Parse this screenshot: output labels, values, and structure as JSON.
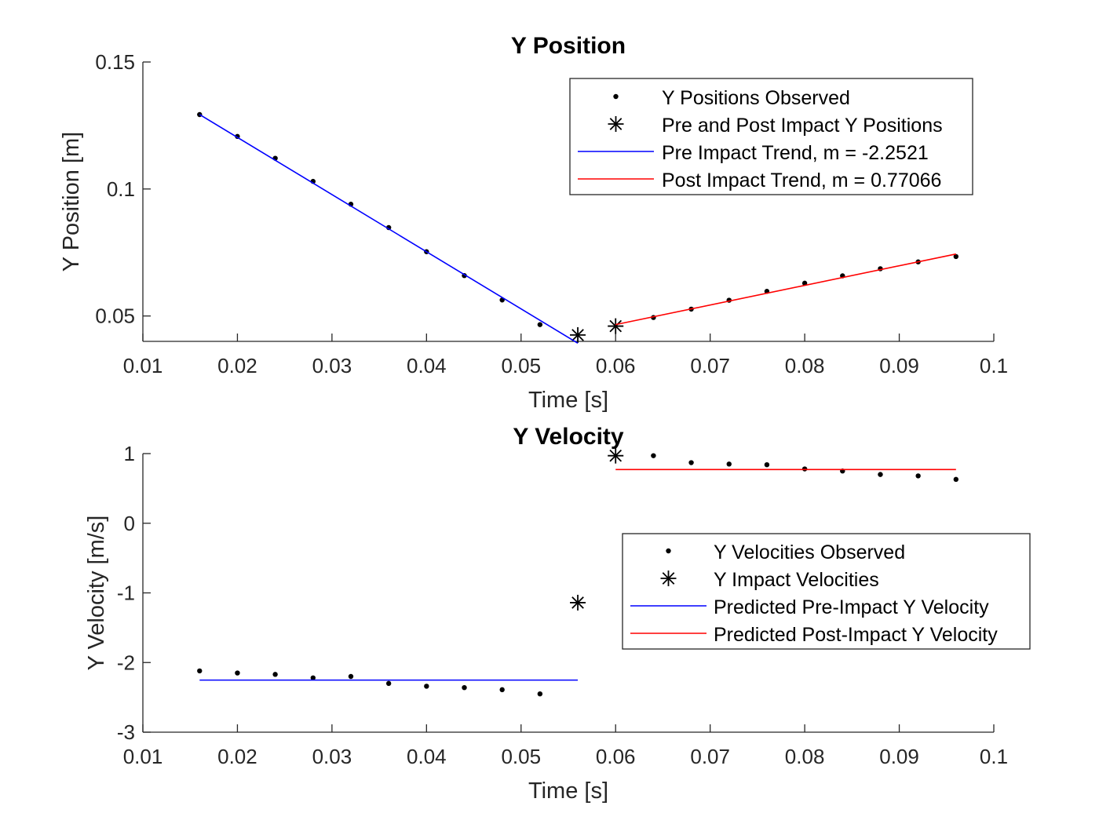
{
  "colors": {
    "pre_trend": "#0000ff",
    "post_trend": "#ff0000",
    "markers": "#000000",
    "axes": "#262626",
    "background": "#ffffff"
  },
  "chart_data": [
    {
      "type": "scatter",
      "title": "Y Position",
      "xlabel": "Time [s]",
      "ylabel": "Y Position [m]",
      "xlim": [
        0.01,
        0.1
      ],
      "ylim": [
        0.04,
        0.15
      ],
      "xticks": [
        0.01,
        0.02,
        0.03,
        0.04,
        0.05,
        0.06,
        0.07,
        0.08,
        0.09,
        0.1
      ],
      "xtick_labels": [
        "0.01",
        "0.02",
        "0.03",
        "0.04",
        "0.05",
        "0.06",
        "0.07",
        "0.08",
        "0.09",
        "0.1"
      ],
      "yticks": [
        0.05,
        0.1,
        0.15
      ],
      "ytick_labels": [
        "0.05",
        "0.1",
        "0.15"
      ],
      "grid": false,
      "legend_position": "top-right",
      "series": [
        {
          "name": "Y Positions Observed",
          "kind": "dots",
          "x": [
            0.016,
            0.02,
            0.024,
            0.028,
            0.032,
            0.036,
            0.04,
            0.044,
            0.048,
            0.052,
            0.064,
            0.068,
            0.072,
            0.076,
            0.08,
            0.084,
            0.088,
            0.092,
            0.096
          ],
          "y": [
            0.1293,
            0.1207,
            0.1121,
            0.103,
            0.094,
            0.0848,
            0.0753,
            0.0659,
            0.0563,
            0.0466,
            0.0494,
            0.0527,
            0.0562,
            0.0597,
            0.0629,
            0.0658,
            0.0686,
            0.0713,
            0.0734
          ]
        },
        {
          "name": "Pre and Post Impact Y Positions",
          "kind": "asterisk",
          "x": [
            0.056,
            0.06
          ],
          "y": [
            0.0425,
            0.046
          ]
        },
        {
          "name": "Pre Impact Trend, m = -2.2521",
          "kind": "line",
          "color": "#0000ff",
          "x": [
            0.016,
            0.056
          ],
          "y": [
            0.1293,
            0.0393
          ]
        },
        {
          "name": "Post Impact Trend, m = 0.77066",
          "kind": "line",
          "color": "#ff0000",
          "x": [
            0.06,
            0.096
          ],
          "y": [
            0.0466,
            0.0744
          ]
        }
      ]
    },
    {
      "type": "scatter",
      "title": "Y Velocity",
      "xlabel": "Time [s]",
      "ylabel": "Y Velocity [m/s]",
      "xlim": [
        0.01,
        0.1
      ],
      "ylim": [
        -3,
        1
      ],
      "xticks": [
        0.01,
        0.02,
        0.03,
        0.04,
        0.05,
        0.06,
        0.07,
        0.08,
        0.09,
        0.1
      ],
      "xtick_labels": [
        "0.01",
        "0.02",
        "0.03",
        "0.04",
        "0.05",
        "0.06",
        "0.07",
        "0.08",
        "0.09",
        "0.1"
      ],
      "yticks": [
        -3,
        -2,
        -1,
        0,
        1
      ],
      "ytick_labels": [
        "-3",
        "-2",
        "-1",
        "0",
        "1"
      ],
      "grid": false,
      "legend_position": "middle-right",
      "series": [
        {
          "name": "Y Velocities Observed",
          "kind": "dots",
          "x": [
            0.016,
            0.02,
            0.024,
            0.028,
            0.032,
            0.036,
            0.04,
            0.044,
            0.048,
            0.052,
            0.064,
            0.068,
            0.072,
            0.076,
            0.08,
            0.084,
            0.088,
            0.092,
            0.096
          ],
          "y": [
            -2.12,
            -2.15,
            -2.17,
            -2.22,
            -2.2,
            -2.3,
            -2.34,
            -2.36,
            -2.39,
            -2.45,
            0.97,
            0.87,
            0.85,
            0.84,
            0.78,
            0.75,
            0.7,
            0.68,
            0.63
          ]
        },
        {
          "name": "Y Impact Velocities",
          "kind": "asterisk",
          "x": [
            0.056,
            0.06
          ],
          "y": [
            -1.14,
            0.97
          ]
        },
        {
          "name": "Predicted Pre-Impact Y Velocity",
          "kind": "line",
          "color": "#0000ff",
          "x": [
            0.016,
            0.056
          ],
          "y": [
            -2.2521,
            -2.2521
          ]
        },
        {
          "name": "Predicted Post-Impact Y Velocity",
          "kind": "line",
          "color": "#ff0000",
          "x": [
            0.06,
            0.096
          ],
          "y": [
            0.77066,
            0.77066
          ]
        }
      ]
    }
  ]
}
